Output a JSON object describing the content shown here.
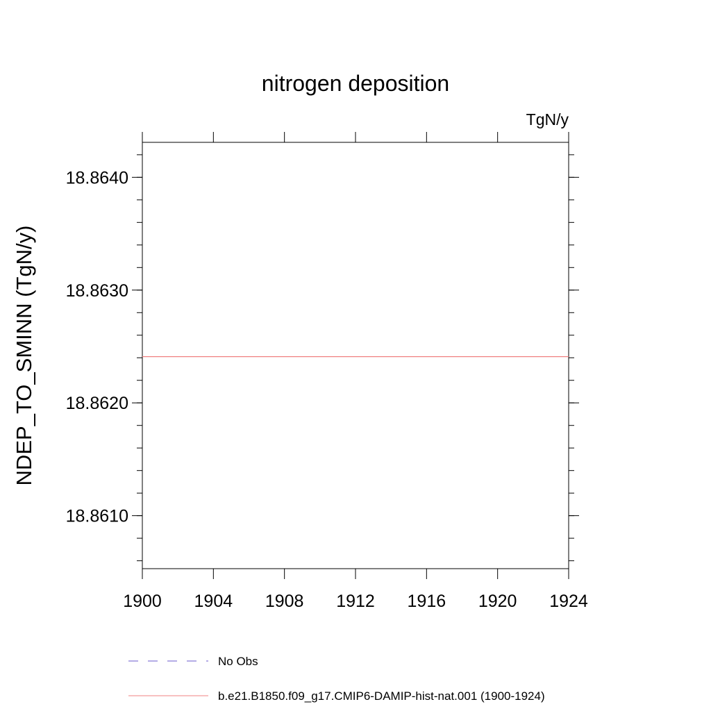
{
  "chart_data": {
    "type": "line",
    "title": "nitrogen deposition",
    "units_label": "TgN/y",
    "xlabel": "",
    "ylabel": "NDEP_TO_SMINN  (TgN/y)",
    "xlim": [
      1900,
      1924
    ],
    "ylim": [
      18.86053,
      18.86431
    ],
    "x_ticks": [
      "1900",
      "1904",
      "1908",
      "1912",
      "1916",
      "1920",
      "1924"
    ],
    "y_ticks": [
      "18.8610",
      "18.8620",
      "18.8630",
      "18.8640"
    ],
    "series": [
      {
        "name": "No Obs",
        "color": "#6a5acd",
        "dash": "dashed",
        "x": [],
        "y": []
      },
      {
        "name": "b.e21.B1850.f09_g17.CMIP6-DAMIP-hist-nat.001 (1900-1924)",
        "color": "#f08080",
        "dash": "solid",
        "x": [
          1900,
          1924
        ],
        "y": [
          18.86241,
          18.86241
        ]
      }
    ],
    "grid": false,
    "legend_position": "bottom"
  }
}
